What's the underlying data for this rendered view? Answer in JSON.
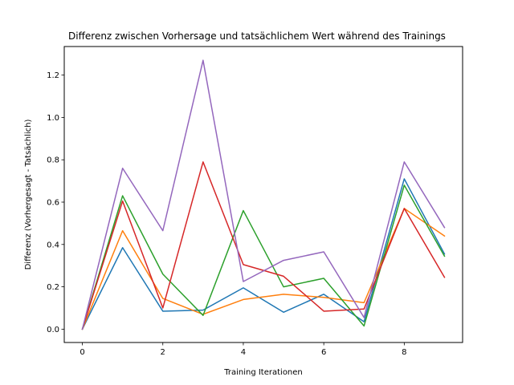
{
  "chart_data": {
    "type": "line",
    "title": "Differenz zwischen Vorhersage und tatsächlichem Wert während des Trainings",
    "xlabel": "Training Iterationen",
    "ylabel": "Differenz (Vorhergesagt - Tatsächlich)",
    "xlim": [
      -0.45,
      9.45
    ],
    "ylim": [
      -0.063,
      1.335
    ],
    "xticks": [
      0,
      2,
      4,
      6,
      8
    ],
    "yticks": [
      0.0,
      0.2,
      0.4,
      0.6,
      0.8,
      1.0,
      1.2
    ],
    "grid": false,
    "x": [
      0,
      1,
      2,
      3,
      4,
      5,
      6,
      7,
      8,
      9
    ],
    "series": [
      {
        "color": "#1f77b4",
        "values": [
          0.0,
          0.385,
          0.085,
          0.09,
          0.195,
          0.08,
          0.165,
          0.035,
          0.71,
          0.355
        ]
      },
      {
        "color": "#ff7f0e",
        "values": [
          0.0,
          0.465,
          0.145,
          0.07,
          0.14,
          0.165,
          0.15,
          0.125,
          0.57,
          0.44
        ]
      },
      {
        "color": "#2ca02c",
        "values": [
          0.0,
          0.63,
          0.26,
          0.065,
          0.56,
          0.2,
          0.24,
          0.015,
          0.68,
          0.345
        ]
      },
      {
        "color": "#d62728",
        "values": [
          0.0,
          0.605,
          0.1,
          0.79,
          0.305,
          0.25,
          0.085,
          0.095,
          0.57,
          0.245
        ]
      },
      {
        "color": "#9467bd",
        "values": [
          0.0,
          0.76,
          0.465,
          1.27,
          0.225,
          0.325,
          0.365,
          0.055,
          0.79,
          0.48
        ]
      }
    ]
  }
}
